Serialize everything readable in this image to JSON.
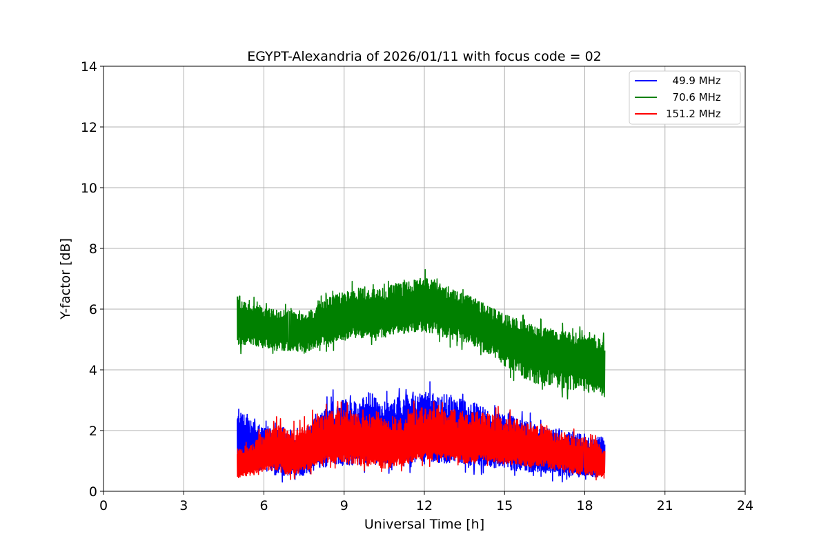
{
  "chart_data": {
    "type": "line",
    "title": "EGYPT-Alexandria of 2026/01/11 with focus code = 02",
    "xlabel": "Universal Time [h]",
    "ylabel": "Y-factor [dB]",
    "xlim": [
      0,
      24
    ],
    "ylim": [
      0,
      14
    ],
    "xticks": [
      0,
      3,
      6,
      9,
      12,
      15,
      18,
      21,
      24
    ],
    "yticks": [
      0,
      2,
      4,
      6,
      8,
      10,
      12,
      14
    ],
    "grid": true,
    "legend_position": "top-right",
    "x_range": [
      5.0,
      18.75
    ],
    "series": [
      {
        "name": "  49.9 MHz",
        "color": "#0000ff",
        "x": [
          5.0,
          5.5,
          6.0,
          6.5,
          7.0,
          7.5,
          8.0,
          8.5,
          9.0,
          9.5,
          10.0,
          10.5,
          11.0,
          11.5,
          12.0,
          12.5,
          13.0,
          13.5,
          14.0,
          14.5,
          15.0,
          15.5,
          16.0,
          16.5,
          17.0,
          17.5,
          18.0,
          18.5,
          18.75
        ],
        "values": [
          1.9,
          1.5,
          1.4,
          1.2,
          1.1,
          1.2,
          1.4,
          1.6,
          1.6,
          1.7,
          1.8,
          1.7,
          1.8,
          1.9,
          1.9,
          1.8,
          1.8,
          1.7,
          1.6,
          1.5,
          1.5,
          1.4,
          1.3,
          1.2,
          1.1,
          1.1,
          1.0,
          1.0,
          1.0
        ],
        "min": [
          0.3,
          0.4,
          0.4,
          0.3,
          0.3,
          0.3,
          0.5,
          0.6,
          0.6,
          0.6,
          0.6,
          0.5,
          0.6,
          0.6,
          0.7,
          0.6,
          0.6,
          0.6,
          0.5,
          0.5,
          0.5,
          0.4,
          0.4,
          0.4,
          0.3,
          0.3,
          0.3,
          0.3,
          0.3
        ],
        "max": [
          3.0,
          2.6,
          2.4,
          2.3,
          2.1,
          2.3,
          2.8,
          3.3,
          3.6,
          3.5,
          3.8,
          3.4,
          3.6,
          3.8,
          3.8,
          3.6,
          3.7,
          3.5,
          3.3,
          3.0,
          3.0,
          2.8,
          2.6,
          2.5,
          2.4,
          2.3,
          2.2,
          2.1,
          2.0
        ]
      },
      {
        "name": "  70.6 MHz",
        "color": "#008000",
        "x": [
          5.0,
          5.5,
          6.0,
          6.5,
          7.0,
          7.5,
          8.0,
          8.5,
          9.0,
          9.5,
          10.0,
          10.5,
          11.0,
          11.5,
          12.0,
          12.5,
          13.0,
          13.5,
          14.0,
          14.5,
          15.0,
          15.5,
          16.0,
          16.5,
          17.0,
          17.5,
          18.0,
          18.5,
          18.75
        ],
        "values": [
          5.6,
          5.5,
          5.4,
          5.3,
          5.3,
          5.2,
          5.4,
          5.6,
          5.7,
          5.8,
          5.8,
          5.8,
          5.9,
          6.0,
          6.0,
          5.9,
          5.8,
          5.7,
          5.5,
          5.3,
          5.1,
          4.9,
          4.7,
          4.6,
          4.5,
          4.4,
          4.3,
          4.2,
          4.2
        ],
        "min": [
          4.5,
          4.6,
          4.5,
          4.4,
          4.4,
          4.3,
          4.5,
          4.6,
          4.7,
          4.8,
          4.8,
          4.8,
          4.9,
          5.0,
          5.0,
          4.9,
          4.7,
          4.6,
          4.4,
          4.2,
          3.8,
          3.5,
          3.2,
          3.1,
          3.0,
          3.0,
          2.9,
          2.9,
          2.9
        ],
        "max": [
          6.8,
          6.5,
          6.3,
          6.2,
          6.2,
          6.0,
          6.4,
          6.7,
          6.9,
          7.0,
          7.1,
          7.0,
          7.2,
          7.3,
          7.4,
          7.2,
          7.0,
          6.8,
          6.6,
          6.3,
          6.1,
          5.9,
          5.8,
          5.7,
          5.6,
          5.5,
          5.4,
          5.3,
          5.3
        ]
      },
      {
        "name": "151.2 MHz",
        "color": "#ff0000",
        "x": [
          5.0,
          5.5,
          6.0,
          6.5,
          7.0,
          7.5,
          8.0,
          8.5,
          9.0,
          9.5,
          10.0,
          10.5,
          11.0,
          11.5,
          12.0,
          12.5,
          13.0,
          13.5,
          14.0,
          14.5,
          15.0,
          15.5,
          16.0,
          16.5,
          17.0,
          17.5,
          18.0,
          18.5,
          18.75
        ],
        "values": [
          0.8,
          0.9,
          1.1,
          1.2,
          1.1,
          1.2,
          1.4,
          1.6,
          1.6,
          1.5,
          1.5,
          1.4,
          1.4,
          1.5,
          1.6,
          1.6,
          1.6,
          1.5,
          1.6,
          1.5,
          1.4,
          1.4,
          1.3,
          1.3,
          1.2,
          1.1,
          1.0,
          0.9,
          0.8
        ],
        "min": [
          0.3,
          0.4,
          0.5,
          0.5,
          0.3,
          0.5,
          0.6,
          0.7,
          0.7,
          0.6,
          0.6,
          0.5,
          0.6,
          0.7,
          0.8,
          0.8,
          0.8,
          0.7,
          0.8,
          0.8,
          0.7,
          0.7,
          0.6,
          0.6,
          0.5,
          0.4,
          0.4,
          0.3,
          0.3
        ],
        "max": [
          1.6,
          1.8,
          2.3,
          2.5,
          2.3,
          2.5,
          2.8,
          3.0,
          3.1,
          3.0,
          2.9,
          2.7,
          2.8,
          3.0,
          3.2,
          3.1,
          3.1,
          3.0,
          3.0,
          2.9,
          2.7,
          2.7,
          2.5,
          2.4,
          2.3,
          2.1,
          2.0,
          1.8,
          1.6
        ]
      }
    ]
  }
}
